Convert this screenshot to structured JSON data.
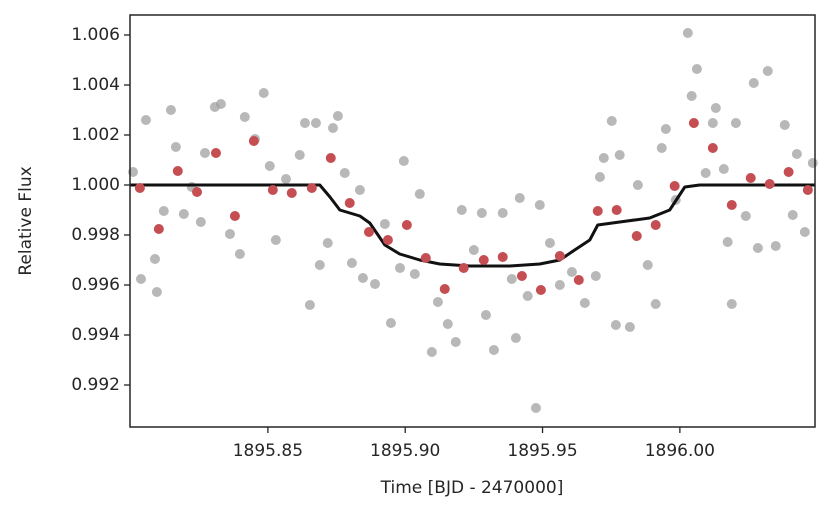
{
  "chart_data": {
    "type": "scatter",
    "xlabel": "Time [BJD - 2470000]",
    "ylabel": "Relative Flux",
    "xlim": [
      1895.7998,
      1896.0492
    ],
    "ylim": [
      0.99032,
      1.0068
    ],
    "xticks": [
      1895.85,
      {
        "value": 1895.9,
        "label": "1895.90"
      },
      1895.95,
      {
        "value": 1896.0,
        "label": "1896.00"
      }
    ],
    "yticks": [
      0.992,
      0.994,
      0.996,
      0.998,
      {
        "value": 1.0,
        "label": "1.000"
      },
      1.002,
      1.004,
      1.006
    ],
    "grid": false,
    "series": [
      {
        "type": "scatter",
        "color": "#a0a0a0",
        "x": [
          1895.8009,
          1895.8038,
          1895.8056,
          1895.8089,
          1895.8096,
          1895.8121,
          1895.8147,
          1895.8165,
          1895.8194,
          1895.8223,
          1895.8256,
          1895.8271,
          1895.8307,
          1895.8329,
          1895.8362,
          1895.8398,
          1895.8416,
          1895.8453,
          1895.8485,
          1895.8507,
          1895.8529,
          1895.8566,
          1895.8616,
          1895.8635,
          1895.8653,
          1895.8675,
          1895.8689,
          1895.8718,
          1895.8737,
          1895.8755,
          1895.878,
          1895.8806,
          1895.8835,
          1895.8846,
          1895.889,
          1895.8926,
          1895.8948,
          1895.8981,
          1895.8995,
          1895.9035,
          1895.9053,
          1895.9097,
          1895.9119,
          1895.9155,
          1895.9184,
          1895.9206,
          1895.925,
          1895.9279,
          1895.9294,
          1895.9323,
          1895.9355,
          1895.9388,
          1895.9403,
          1895.9417,
          1895.9446,
          1895.9476,
          1895.949,
          1895.9527,
          1895.9563,
          1895.9607,
          1895.9654,
          1895.9694,
          1895.9709,
          1895.9723,
          1895.9752,
          1895.9767,
          1895.9781,
          1895.9818,
          1895.9847,
          1895.9883,
          1895.9912,
          1895.9934,
          1895.9949,
          1895.9985,
          1896.0029,
          1896.0043,
          1896.0062,
          1896.0094,
          1896.012,
          1896.0131,
          1896.016,
          1896.0174,
          1896.0189,
          1896.0204,
          1896.024,
          1896.0269,
          1896.0284,
          1896.032,
          1896.0349,
          1896.0382,
          1896.0411,
          1896.0426,
          1896.0455,
          1896.0484
        ],
        "values": [
          1.00052,
          0.99624,
          1.0026,
          0.99704,
          0.99572,
          0.99896,
          1.003,
          1.00152,
          0.99884,
          0.99992,
          0.99852,
          1.00128,
          1.00312,
          1.00324,
          0.99804,
          0.99724,
          1.00272,
          1.00184,
          1.00368,
          1.00076,
          0.9978,
          1.00024,
          1.0012,
          1.00248,
          0.9952,
          1.00248,
          0.9968,
          0.99768,
          1.00228,
          1.00276,
          1.00048,
          0.99688,
          0.9998,
          0.99628,
          0.99604,
          0.99844,
          0.99448,
          0.99668,
          1.00096,
          0.99644,
          0.99964,
          0.99332,
          0.99532,
          0.99444,
          0.99372,
          0.999,
          0.9974,
          0.99888,
          0.9948,
          0.9934,
          0.99888,
          0.99624,
          0.99388,
          0.99948,
          0.99556,
          0.99108,
          0.9992,
          0.99768,
          0.996,
          0.99652,
          0.99528,
          0.99636,
          1.00032,
          1.00108,
          1.00256,
          0.9944,
          1.0012,
          0.99432,
          1.0,
          0.9968,
          0.99524,
          1.00148,
          1.00224,
          0.9994,
          1.00608,
          1.00356,
          1.00464,
          1.00048,
          1.00248,
          1.00308,
          1.00064,
          0.99772,
          0.99524,
          1.00248,
          0.99876,
          1.00408,
          0.99748,
          1.00456,
          0.99756,
          1.0024,
          0.9988,
          1.00124,
          0.99812,
          1.00088
        ]
      },
      {
        "type": "line",
        "color": "#111111",
        "x": [
          1895.7998,
          1895.8689,
          1895.8726,
          1895.8762,
          1895.8835,
          1895.8871,
          1895.8926,
          1895.898,
          1895.9053,
          1895.9126,
          1895.9235,
          1895.9381,
          1895.949,
          1895.9563,
          1895.9617,
          1895.9672,
          1895.9701,
          1895.9781,
          1895.989,
          1895.9963,
          1896.0018,
          1896.0072,
          1896.0492
        ],
        "values": [
          1.0,
          1.0,
          0.99952,
          0.999,
          0.99876,
          0.99848,
          0.9976,
          0.99724,
          0.997,
          0.99684,
          0.99676,
          0.99676,
          0.99684,
          0.997,
          0.9974,
          0.9978,
          0.9984,
          0.99852,
          0.99868,
          0.999,
          0.99992,
          1.0,
          1.0
        ]
      },
      {
        "type": "scatter",
        "color": "#c44e52",
        "x": [
          1895.8034,
          1895.8103,
          1895.8172,
          1895.8242,
          1895.8311,
          1895.838,
          1895.8449,
          1895.8518,
          1895.8587,
          1895.866,
          1895.8729,
          1895.8798,
          1895.8868,
          1895.8937,
          1895.9006,
          1895.9075,
          1895.9144,
          1895.9213,
          1895.9286,
          1895.9355,
          1895.9425,
          1895.9494,
          1895.9563,
          1895.9632,
          1895.9701,
          1895.977,
          1895.9843,
          1895.9912,
          1895.9981,
          1896.0051,
          1896.012,
          1896.0189,
          1896.0258,
          1896.0327,
          1896.0396,
          1896.0466
        ],
        "values": [
          0.99988,
          0.99824,
          1.00056,
          0.99972,
          1.00128,
          0.99876,
          1.00176,
          0.9998,
          0.99968,
          0.99988,
          1.00108,
          0.99928,
          0.99812,
          0.9978,
          0.9984,
          0.99708,
          0.99584,
          0.99668,
          0.997,
          0.99712,
          0.99636,
          0.9958,
          0.99716,
          0.9962,
          0.99896,
          0.999,
          0.99796,
          0.9984,
          0.99996,
          1.00248,
          1.00148,
          0.9992,
          1.00028,
          1.00004,
          1.00052,
          0.9998
        ]
      }
    ]
  }
}
